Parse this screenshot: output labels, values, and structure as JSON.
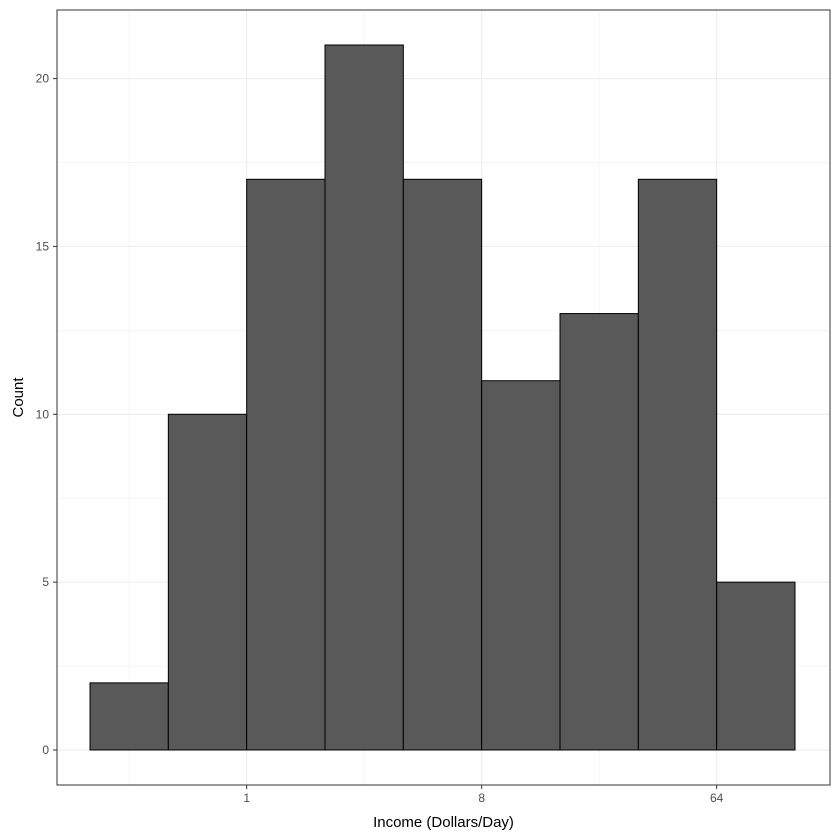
{
  "chart_data": {
    "type": "bar",
    "subtype": "histogram",
    "xlabel": "Income (Dollars/Day)",
    "ylabel": "Count",
    "x_scale": "log2",
    "xlim": [
      0.25,
      128
    ],
    "ylim": [
      0,
      21
    ],
    "x_ticks": [
      1,
      8,
      64
    ],
    "x_tick_labels": [
      "1",
      "8",
      "64"
    ],
    "y_ticks": [
      0,
      5,
      10,
      15,
      20
    ],
    "y_tick_labels": [
      "0",
      "5",
      "10",
      "15",
      "20"
    ],
    "bin_edges": [
      0.25,
      0.5,
      1,
      2,
      4,
      8,
      16,
      32,
      64,
      128
    ],
    "bins": [
      {
        "x0": 0.25,
        "x1": 0.5,
        "count": 2
      },
      {
        "x0": 0.5,
        "x1": 1,
        "count": 10
      },
      {
        "x0": 1,
        "x1": 2,
        "count": 17
      },
      {
        "x0": 2,
        "x1": 4,
        "count": 21
      },
      {
        "x0": 4,
        "x1": 8,
        "count": 17
      },
      {
        "x0": 8,
        "x1": 16,
        "count": 11
      },
      {
        "x0": 16,
        "x1": 32,
        "count": 13
      },
      {
        "x0": 32,
        "x1": 64,
        "count": 17
      },
      {
        "x0": 64,
        "x1": 128,
        "count": 5
      }
    ],
    "grid": true,
    "bar_fill": "#595959",
    "bar_stroke": "#000000",
    "grid_major_color": "#ebebeb",
    "grid_minor_color": "#f5f5f5",
    "panel_border_color": "#333333",
    "theme": "bw"
  }
}
